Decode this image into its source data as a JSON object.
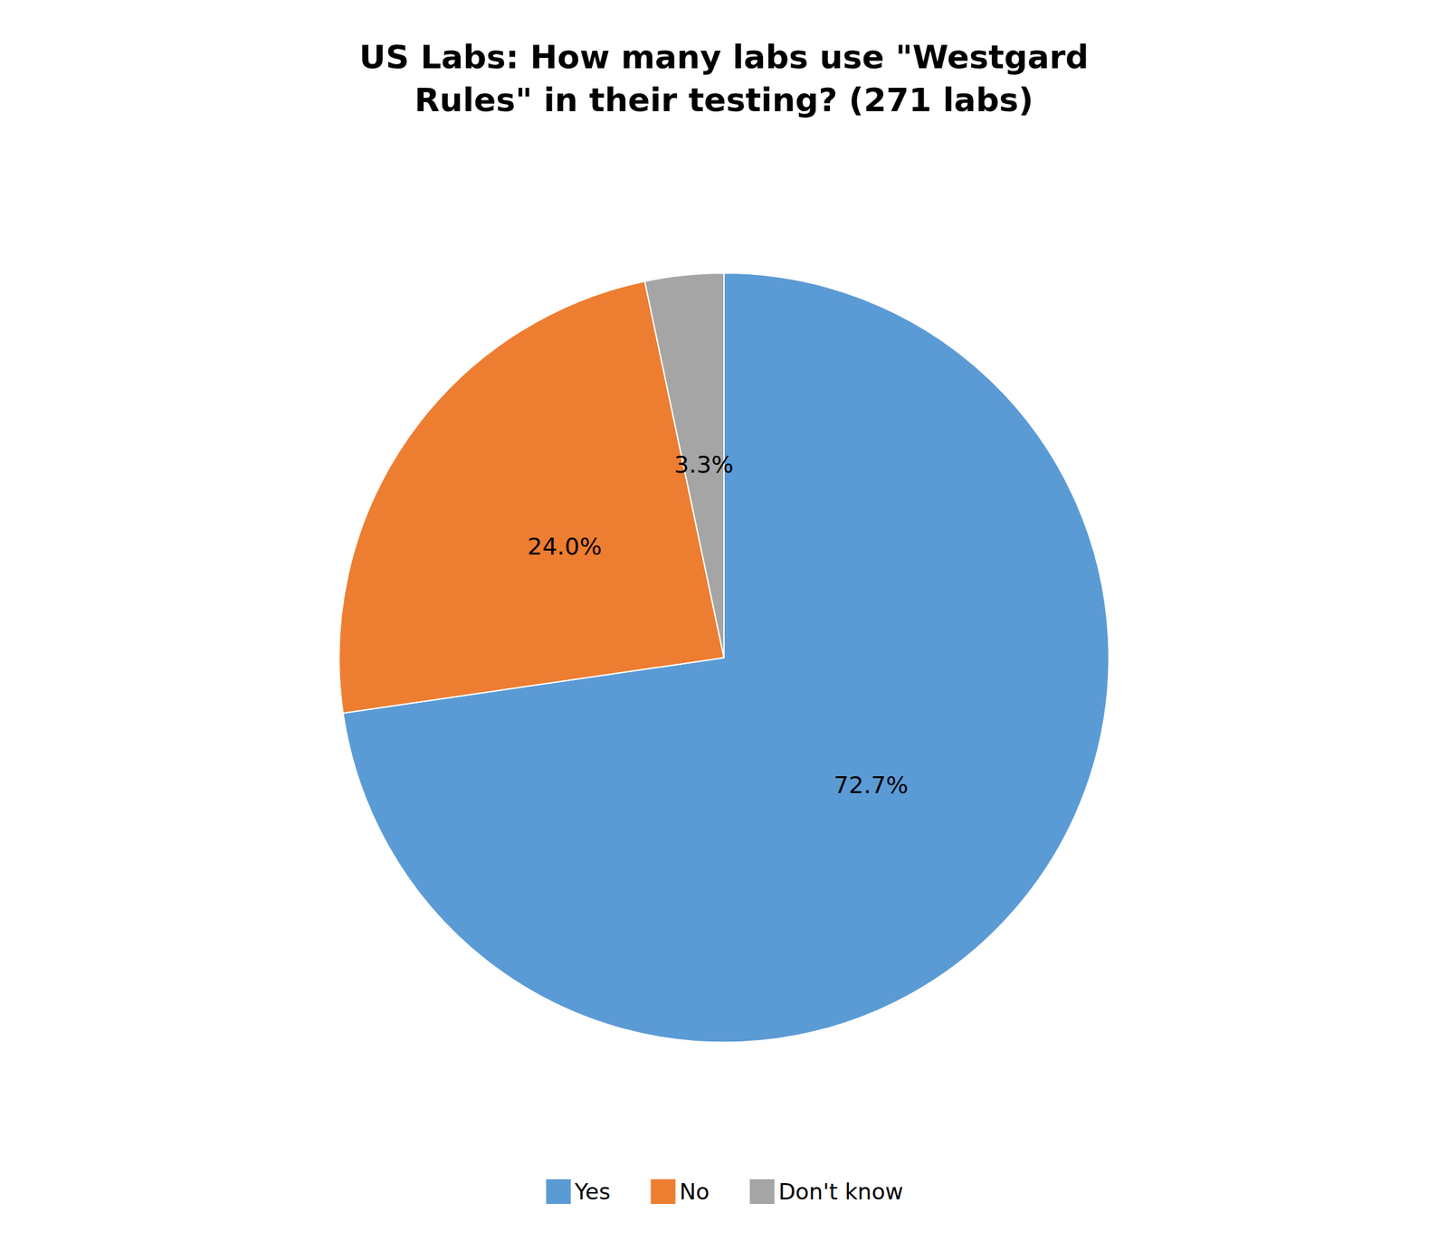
{
  "chart_data": {
    "type": "pie",
    "title": "US Labs: How many labs use \"Westgard\nRules\" in their testing? (271 labs)",
    "categories": [
      "Yes",
      "No",
      "Don't know"
    ],
    "values": [
      72.7,
      24.0,
      3.3
    ],
    "value_labels": [
      "72.7%",
      "24.0%",
      "3.3%"
    ],
    "colors": [
      "#5B9BD5",
      "#ED7D31",
      "#A5A5A5"
    ],
    "data_labels": true,
    "legend": "bottom"
  }
}
